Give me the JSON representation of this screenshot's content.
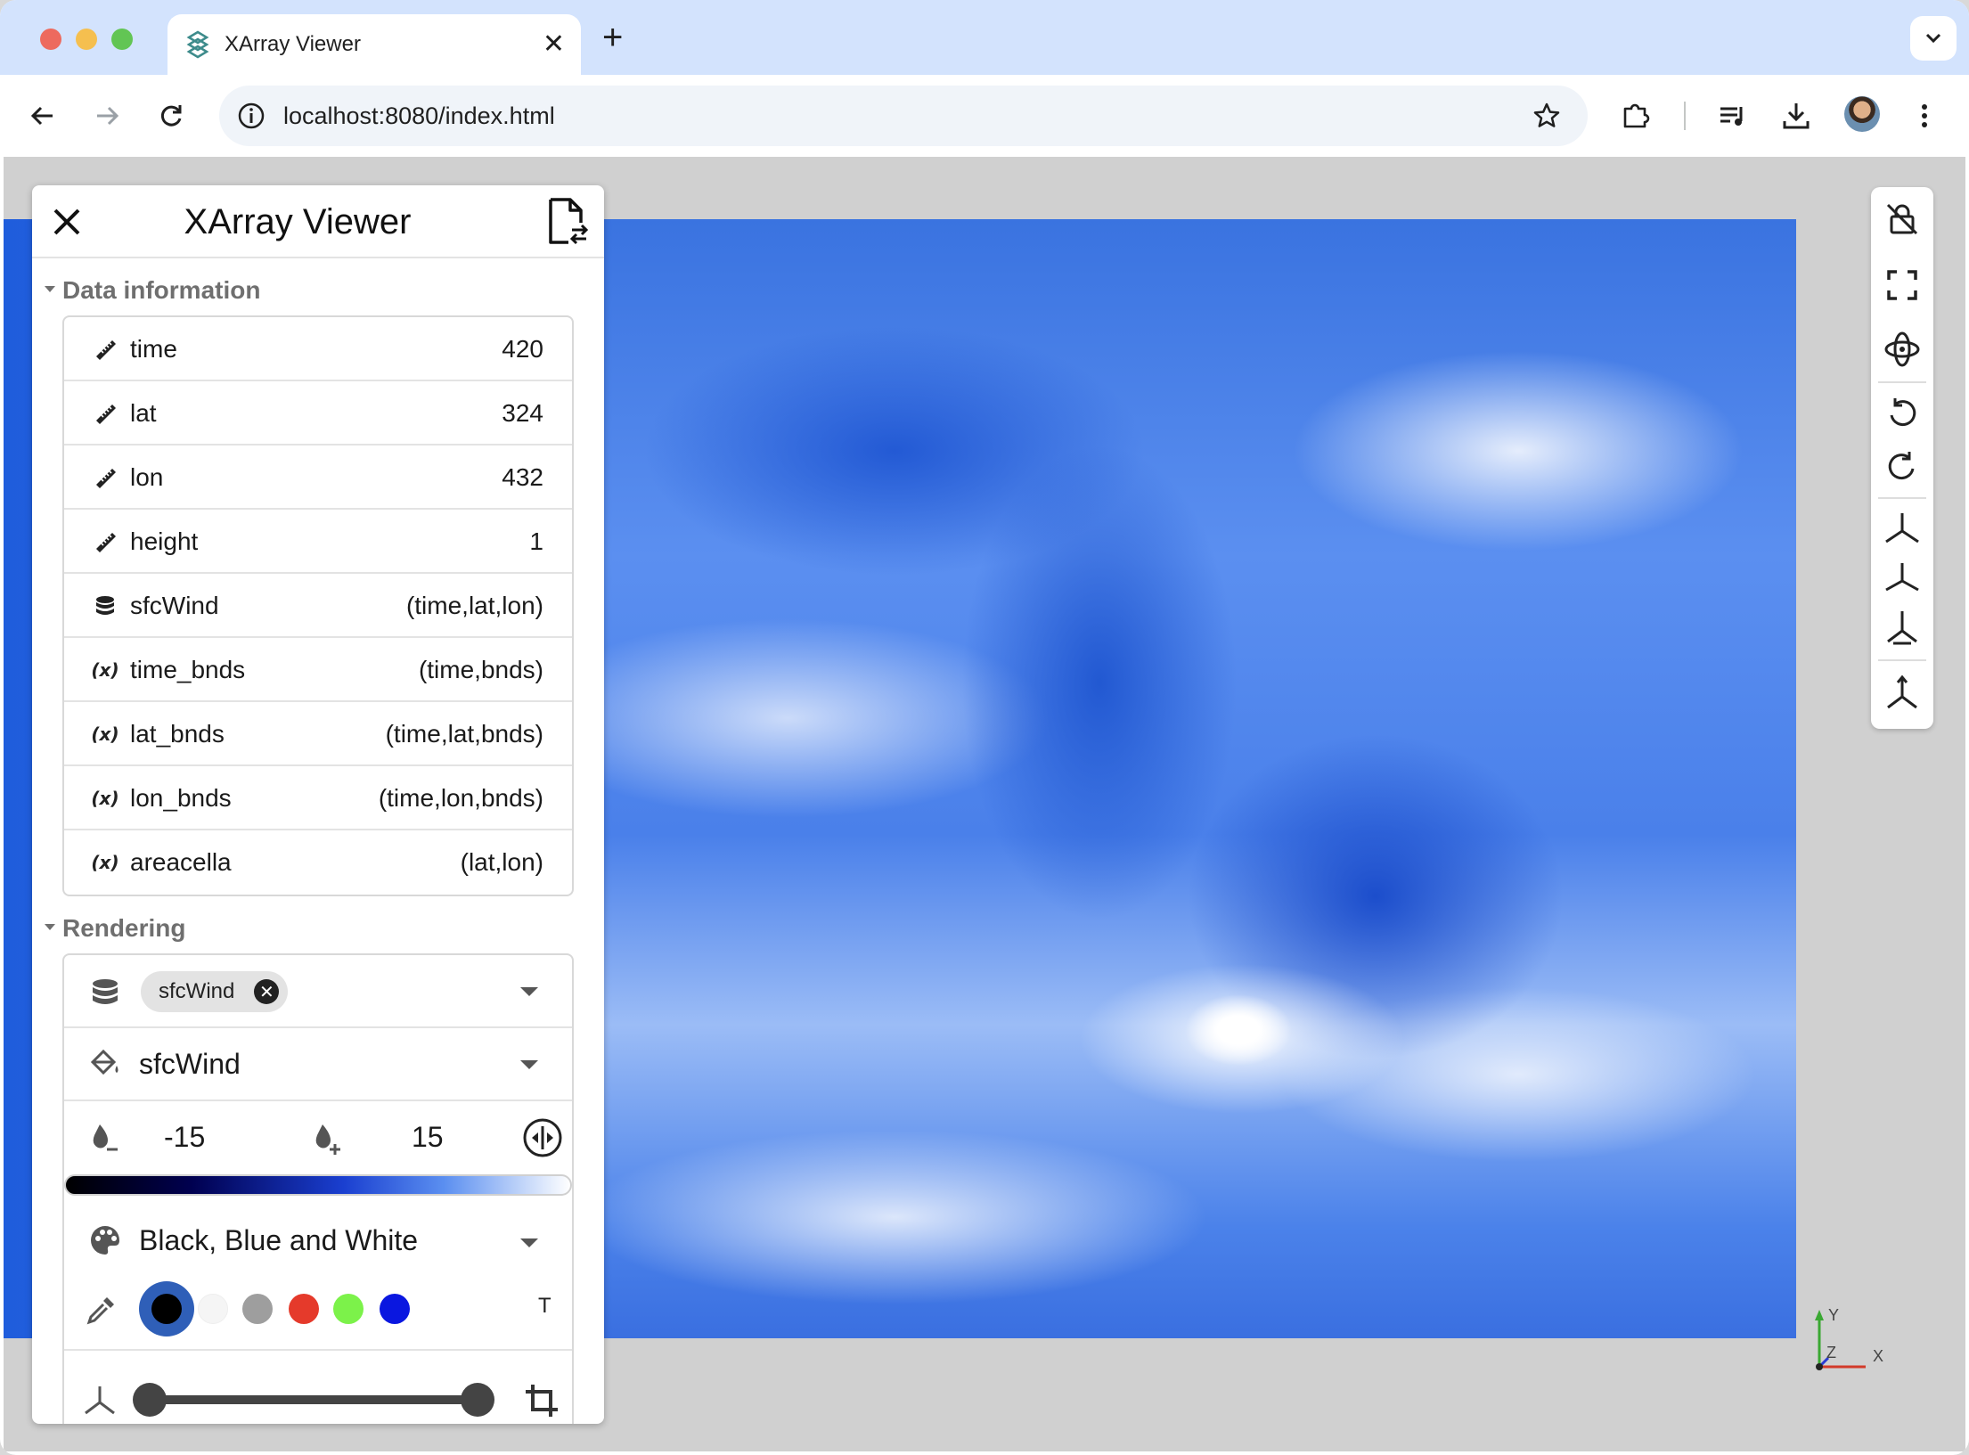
{
  "browser": {
    "tab_title": "XArray Viewer",
    "tab_close": "✕",
    "new_tab": "+",
    "url": "localhost:8080/index.html"
  },
  "panel": {
    "title": "XArray Viewer",
    "data_section_title": "Data information",
    "rendering_section_title": "Rendering",
    "data_rows": [
      {
        "icon": "ruler-icon",
        "name": "time",
        "value": "420"
      },
      {
        "icon": "ruler-icon",
        "name": "lat",
        "value": "324"
      },
      {
        "icon": "ruler-icon",
        "name": "lon",
        "value": "432"
      },
      {
        "icon": "ruler-icon",
        "name": "height",
        "value": "1"
      },
      {
        "icon": "database-icon",
        "name": "sfcWind",
        "value": "(time,lat,lon)"
      },
      {
        "icon": "variable-icon",
        "icon_text": "(x)",
        "name": "time_bnds",
        "value": "(time,bnds)"
      },
      {
        "icon": "variable-icon",
        "icon_text": "(x)",
        "name": "lat_bnds",
        "value": "(time,lat,bnds)"
      },
      {
        "icon": "variable-icon",
        "icon_text": "(x)",
        "name": "lon_bnds",
        "value": "(time,lon,bnds)"
      },
      {
        "icon": "variable-icon",
        "icon_text": "(x)",
        "name": "areacella",
        "value": "(lat,lon)"
      }
    ],
    "rendering": {
      "selected_array_chip": "sfcWind",
      "chip_remove": "✕",
      "color_by": "sfcWind",
      "range_min": "-15",
      "range_max": "15",
      "colormap": "Black, Blue and White",
      "swatches": [
        "#000000",
        "#f5f5f5",
        "#9e9e9e",
        "#e53a2b",
        "#7cf24a",
        "#0a17e0"
      ],
      "transparent_label": "T",
      "slice_range": [
        0.0,
        1.0
      ]
    }
  },
  "viewport": {
    "axes": {
      "y": "Y",
      "z": "Z",
      "x": "X"
    },
    "colors": {
      "accent": "#2f5fb8",
      "field_dark": "#1f5ddc",
      "field_light": "#ffffff"
    }
  }
}
